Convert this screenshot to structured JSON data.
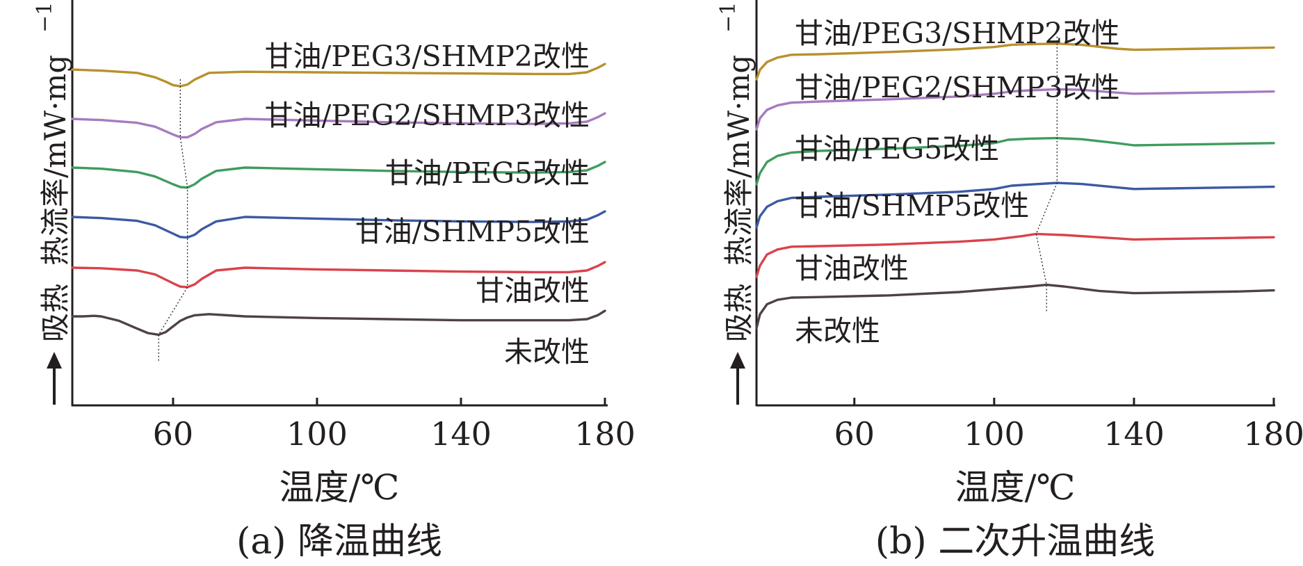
{
  "chart_data": [
    {
      "type": "line",
      "caption": "(a) 降温曲线",
      "xlabel": "温度/℃",
      "ylabel": "热流率/mW·mg",
      "ylabel_superscript": "−1",
      "endo_label": "吸热",
      "xlim": [
        32,
        180
      ],
      "xticks": [
        "60",
        "100",
        "140",
        "180"
      ],
      "legend": "none (labels placed at right above each curve)",
      "grid": false,
      "colors": [
        "#4e4245",
        "#d9434b",
        "#3b5aa3",
        "#3f9c5e",
        "#a77bbf",
        "#b8912e"
      ],
      "series": [
        {
          "name": "未改性",
          "x": [
            32,
            35,
            38,
            40,
            45,
            50,
            53,
            56,
            58,
            60,
            62,
            64,
            66,
            70,
            80,
            100,
            120,
            140,
            160,
            170,
            175,
            178,
            180
          ],
          "y": [
            0.0,
            0.0,
            0.01,
            0.0,
            -0.08,
            -0.22,
            -0.3,
            -0.33,
            -0.28,
            -0.18,
            -0.08,
            -0.02,
            0.02,
            0.04,
            0.0,
            -0.03,
            -0.05,
            -0.07,
            -0.07,
            -0.07,
            -0.05,
            0.02,
            0.1
          ]
        },
        {
          "name": "甘油改性",
          "x": [
            32,
            40,
            50,
            55,
            60,
            62,
            64,
            66,
            68,
            72,
            80,
            100,
            120,
            140,
            160,
            170,
            175,
            178,
            180
          ],
          "y": [
            0.0,
            -0.01,
            -0.05,
            -0.12,
            -0.28,
            -0.34,
            -0.35,
            -0.3,
            -0.2,
            -0.05,
            0.0,
            -0.03,
            -0.05,
            -0.07,
            -0.08,
            -0.08,
            -0.05,
            0.03,
            0.1
          ]
        },
        {
          "name": "甘油/SHMP5改性",
          "x": [
            32,
            40,
            50,
            55,
            60,
            62,
            64,
            66,
            68,
            72,
            80,
            100,
            120,
            140,
            160,
            170,
            175,
            178,
            180
          ],
          "y": [
            0.0,
            -0.02,
            -0.07,
            -0.15,
            -0.3,
            -0.36,
            -0.37,
            -0.32,
            -0.22,
            -0.08,
            0.0,
            -0.03,
            -0.06,
            -0.08,
            -0.09,
            -0.08,
            -0.05,
            0.03,
            0.1
          ]
        },
        {
          "name": "甘油/PEG5改性",
          "x": [
            32,
            40,
            50,
            55,
            60,
            62,
            64,
            66,
            68,
            72,
            80,
            100,
            120,
            140,
            160,
            170,
            175,
            178,
            180
          ],
          "y": [
            0.0,
            -0.02,
            -0.08,
            -0.16,
            -0.3,
            -0.35,
            -0.36,
            -0.3,
            -0.2,
            -0.06,
            0.0,
            -0.03,
            -0.06,
            -0.08,
            -0.09,
            -0.08,
            -0.05,
            0.03,
            0.1
          ]
        },
        {
          "name": "甘油/PEG2/SHMP3改性",
          "x": [
            32,
            40,
            50,
            55,
            60,
            62,
            64,
            66,
            68,
            72,
            80,
            100,
            120,
            140,
            160,
            170,
            175,
            178,
            180
          ],
          "y": [
            0.0,
            -0.02,
            -0.07,
            -0.14,
            -0.28,
            -0.33,
            -0.33,
            -0.27,
            -0.18,
            -0.06,
            0.0,
            -0.03,
            -0.06,
            -0.08,
            -0.09,
            -0.08,
            -0.05,
            0.03,
            0.1
          ]
        },
        {
          "name": "甘油/PEG3/SHMP2改性",
          "x": [
            32,
            40,
            50,
            55,
            58,
            60,
            62,
            64,
            66,
            70,
            80,
            100,
            120,
            140,
            160,
            170,
            175,
            178,
            180
          ],
          "y": [
            0.0,
            -0.02,
            -0.06,
            -0.14,
            -0.22,
            -0.28,
            -0.3,
            -0.27,
            -0.18,
            -0.06,
            -0.04,
            -0.05,
            -0.06,
            -0.07,
            -0.08,
            -0.08,
            -0.05,
            0.03,
            0.1
          ]
        }
      ]
    },
    {
      "type": "line",
      "caption": "(b) 二次升温曲线",
      "xlabel": "温度/℃",
      "ylabel": "热流率/mW·mg",
      "ylabel_superscript": "−1",
      "endo_label": "吸热",
      "xlim": [
        32,
        180
      ],
      "xticks": [
        "60",
        "100",
        "140",
        "180"
      ],
      "legend": "none (labels placed at left above each curve)",
      "grid": false,
      "colors": [
        "#4e4245",
        "#d9434b",
        "#3b5aa3",
        "#3f9c5e",
        "#a77bbf",
        "#b8912e"
      ],
      "series": [
        {
          "name": "未改性",
          "x": [
            32,
            33,
            35,
            38,
            42,
            50,
            70,
            90,
            100,
            110,
            115,
            120,
            130,
            140,
            150,
            160,
            170,
            180
          ],
          "y": [
            -0.55,
            -0.3,
            -0.12,
            -0.04,
            0.0,
            0.01,
            0.04,
            0.1,
            0.15,
            0.2,
            0.23,
            0.2,
            0.12,
            0.08,
            0.09,
            0.1,
            0.11,
            0.13
          ]
        },
        {
          "name": "甘油改性",
          "x": [
            32,
            33,
            35,
            38,
            42,
            50,
            70,
            90,
            100,
            108,
            112,
            120,
            130,
            140,
            150,
            160,
            170,
            180
          ],
          "y": [
            -0.55,
            -0.35,
            -0.15,
            -0.06,
            -0.01,
            0.0,
            0.03,
            0.08,
            0.12,
            0.18,
            0.22,
            0.2,
            0.16,
            0.12,
            0.13,
            0.14,
            0.15,
            0.16
          ]
        },
        {
          "name": "甘油/SHMP5改性",
          "x": [
            32,
            33,
            35,
            38,
            42,
            50,
            70,
            90,
            100,
            105,
            110,
            118,
            125,
            135,
            140,
            150,
            160,
            170,
            180
          ],
          "y": [
            -0.55,
            -0.35,
            -0.18,
            -0.08,
            -0.02,
            0.0,
            0.04,
            0.09,
            0.14,
            0.2,
            0.22,
            0.25,
            0.23,
            0.17,
            0.14,
            0.15,
            0.16,
            0.17,
            0.18
          ]
        },
        {
          "name": "甘油/PEG5改性",
          "x": [
            32,
            33,
            35,
            38,
            42,
            50,
            70,
            90,
            100,
            104,
            110,
            118,
            125,
            135,
            140,
            150,
            160,
            170,
            180
          ],
          "y": [
            -0.6,
            -0.4,
            -0.2,
            -0.09,
            -0.03,
            0.0,
            0.04,
            0.09,
            0.14,
            0.2,
            0.22,
            0.23,
            0.21,
            0.14,
            0.1,
            0.11,
            0.12,
            0.13,
            0.14
          ]
        },
        {
          "name": "甘油/PEG2/SHMP3改性",
          "x": [
            32,
            33,
            35,
            38,
            42,
            50,
            70,
            90,
            100,
            105,
            110,
            118,
            125,
            135,
            140,
            150,
            160,
            170,
            180
          ],
          "y": [
            -0.5,
            -0.3,
            -0.15,
            -0.07,
            -0.02,
            0.0,
            0.04,
            0.09,
            0.14,
            0.18,
            0.2,
            0.22,
            0.21,
            0.16,
            0.14,
            0.15,
            0.16,
            0.17,
            0.18
          ]
        },
        {
          "name": "甘油/PEG3/SHMP2改性",
          "x": [
            32,
            33,
            35,
            38,
            42,
            50,
            70,
            90,
            100,
            105,
            110,
            118,
            125,
            135,
            140,
            150,
            160,
            170,
            180
          ],
          "y": [
            -0.45,
            -0.28,
            -0.14,
            -0.06,
            -0.01,
            0.0,
            0.04,
            0.09,
            0.13,
            0.17,
            0.18,
            0.19,
            0.17,
            0.1,
            0.08,
            0.09,
            0.1,
            0.11,
            0.12
          ]
        }
      ]
    }
  ]
}
